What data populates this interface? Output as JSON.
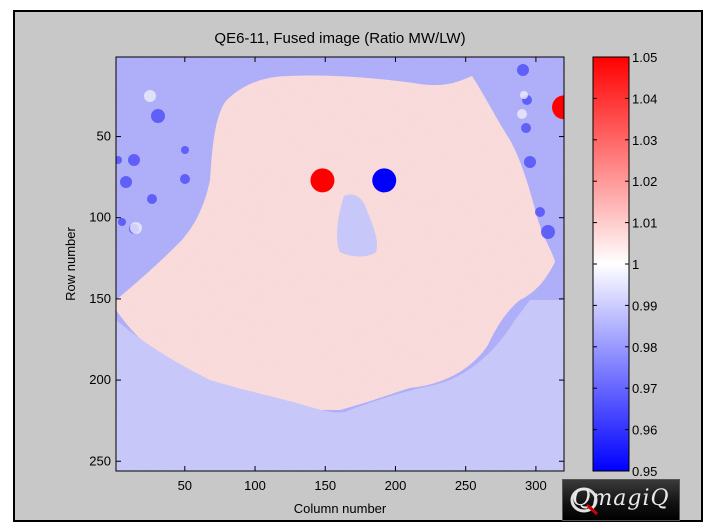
{
  "chart_data": {
    "type": "heatmap",
    "title": "QE6-11, Fused image (Ratio MW/LW)",
    "xlabel": "Column number",
    "ylabel": "Row number",
    "xlim": [
      1,
      320
    ],
    "ylim": [
      1,
      256
    ],
    "x_ticks": [
      50,
      100,
      150,
      200,
      250,
      300
    ],
    "y_ticks": [
      50,
      100,
      150,
      200,
      250
    ],
    "colorbar": {
      "range": [
        0.95,
        1.05
      ],
      "ticks": [
        1.05,
        1.04,
        1.03,
        1.02,
        1.01,
        1,
        0.99,
        0.98,
        0.97,
        0.96,
        0.95
      ],
      "colormap": [
        "#0000ff",
        "#ffffff",
        "#ff0000"
      ]
    },
    "background_ratio": 0.985,
    "subject_ratio": 1.006,
    "lower_body_ratio": 0.99,
    "markers": [
      {
        "col": 148,
        "row": 77,
        "ratio": 1.05
      },
      {
        "col": 192,
        "row": 77,
        "ratio": 0.95
      },
      {
        "col": 320,
        "row": 32,
        "ratio": 1.05
      }
    ],
    "grid": false
  },
  "logo": {
    "text": "QmagiQ"
  }
}
